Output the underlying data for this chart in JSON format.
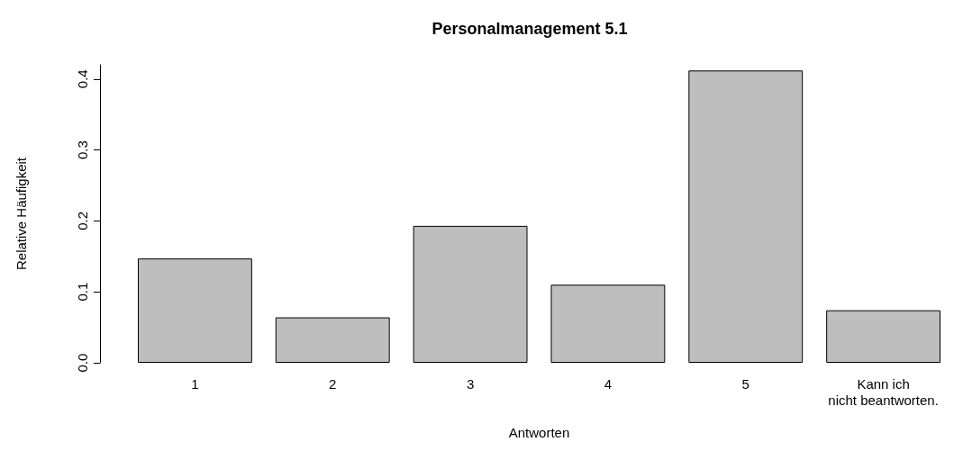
{
  "chart_data": {
    "type": "bar",
    "title": "Personalmanagement 5.1",
    "xlabel": "Antworten",
    "ylabel": "Relative Häufigkeit",
    "categories": [
      "1",
      "2",
      "3",
      "4",
      "5",
      "Kann ich\nnicht beantworten."
    ],
    "values": [
      0.147,
      0.064,
      0.193,
      0.11,
      0.412,
      0.074
    ],
    "color": "#bebebe",
    "ylim": [
      0,
      0.42
    ],
    "yticks": [
      {
        "value": 0,
        "label": "0.0"
      },
      {
        "value": 0.1,
        "label": "0.1"
      },
      {
        "value": 0.2,
        "label": "0.2"
      },
      {
        "value": 0.3,
        "label": "0.3"
      },
      {
        "value": 0.4,
        "label": "0.4"
      }
    ],
    "grid": false
  }
}
